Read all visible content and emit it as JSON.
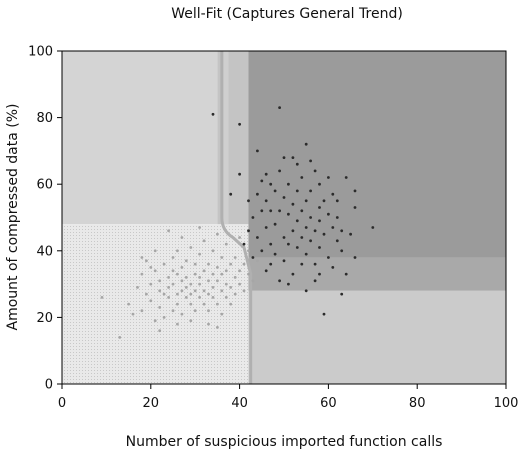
{
  "chart_data": {
    "type": "scatter",
    "title": "Well-Fit (Captures General Trend)",
    "xlabel": "Number of suspicious imported function calls",
    "ylabel": "Amount of compressed data (%)",
    "xlim": [
      0,
      100
    ],
    "ylim": [
      0,
      100
    ],
    "xticks": [
      "0",
      "20",
      "40",
      "60",
      "80",
      "100"
    ],
    "yticks": [
      "0",
      "20",
      "40",
      "60",
      "80",
      "100"
    ],
    "grid": false,
    "legend": "none",
    "colors": {
      "benign_points": "#a6a6a6",
      "malware_points": "#2b2b2b",
      "region_light": "#d4d4d4",
      "region_lighter": "#dedede",
      "region_dotted": "#e6e6e6",
      "region_dark": "#9b9b9b",
      "region_mid": "#a9a9a9",
      "region_midlight": "#cbcbcb",
      "boundary_band": "#c4c4c4",
      "boundary_line": "#b0b0b0"
    },
    "decision_regions": [
      {
        "x": [
          0,
          35
        ],
        "y": [
          48,
          100
        ],
        "shade": "region_light"
      },
      {
        "x": [
          0,
          42
        ],
        "y": [
          0,
          48
        ],
        "shade": "region_dotted"
      },
      {
        "x": [
          35,
          42
        ],
        "y": [
          48,
          100
        ],
        "shade": "boundary_band"
      },
      {
        "x": [
          42,
          100
        ],
        "y": [
          0,
          28
        ],
        "shade": "region_midlight"
      },
      {
        "x": [
          42,
          100
        ],
        "y": [
          28,
          38
        ],
        "shade": "region_mid"
      },
      {
        "x": [
          42,
          100
        ],
        "y": [
          38,
          100
        ],
        "shade": "region_dark"
      }
    ],
    "series": [
      {
        "color": "benign_points",
        "points": [
          [
            9,
            26
          ],
          [
            13,
            14
          ],
          [
            15,
            24
          ],
          [
            16,
            21
          ],
          [
            17,
            29
          ],
          [
            18,
            33
          ],
          [
            18,
            22
          ],
          [
            19,
            27
          ],
          [
            19,
            37
          ],
          [
            20,
            30
          ],
          [
            20,
            25
          ],
          [
            21,
            19
          ],
          [
            21,
            34
          ],
          [
            22,
            28
          ],
          [
            22,
            31
          ],
          [
            22,
            23
          ],
          [
            23,
            27
          ],
          [
            23,
            36
          ],
          [
            23,
            20
          ],
          [
            24,
            32
          ],
          [
            24,
            26
          ],
          [
            24,
            29
          ],
          [
            25,
            22
          ],
          [
            25,
            34
          ],
          [
            25,
            38
          ],
          [
            25,
            30
          ],
          [
            26,
            27
          ],
          [
            26,
            24
          ],
          [
            26,
            33
          ],
          [
            26,
            18
          ],
          [
            27,
            31
          ],
          [
            27,
            28
          ],
          [
            27,
            35
          ],
          [
            27,
            21
          ],
          [
            28,
            29
          ],
          [
            28,
            26
          ],
          [
            28,
            37
          ],
          [
            28,
            32
          ],
          [
            29,
            24
          ],
          [
            29,
            30
          ],
          [
            29,
            41
          ],
          [
            29,
            27
          ],
          [
            30,
            33
          ],
          [
            30,
            28
          ],
          [
            30,
            22
          ],
          [
            30,
            36
          ],
          [
            31,
            30
          ],
          [
            31,
            26
          ],
          [
            31,
            39
          ],
          [
            31,
            32
          ],
          [
            32,
            28
          ],
          [
            32,
            34
          ],
          [
            32,
            24
          ],
          [
            32,
            43
          ],
          [
            33,
            31
          ],
          [
            33,
            27
          ],
          [
            33,
            36
          ],
          [
            33,
            22
          ],
          [
            34,
            29
          ],
          [
            34,
            33
          ],
          [
            34,
            40
          ],
          [
            34,
            26
          ],
          [
            35,
            31
          ],
          [
            35,
            35
          ],
          [
            35,
            24
          ],
          [
            35,
            45
          ],
          [
            36,
            28
          ],
          [
            36,
            33
          ],
          [
            36,
            38
          ],
          [
            36,
            21
          ],
          [
            37,
            30
          ],
          [
            37,
            26
          ],
          [
            37,
            42
          ],
          [
            37,
            34
          ],
          [
            38,
            29
          ],
          [
            38,
            36
          ],
          [
            38,
            24
          ],
          [
            39,
            32
          ],
          [
            39,
            38
          ],
          [
            39,
            27
          ],
          [
            40,
            34
          ],
          [
            40,
            30
          ],
          [
            40,
            44
          ],
          [
            41,
            36
          ],
          [
            41,
            28
          ],
          [
            42,
            33
          ],
          [
            42,
            40
          ],
          [
            43,
            31
          ],
          [
            44,
            37
          ],
          [
            24,
            46
          ],
          [
            21,
            40
          ],
          [
            18,
            38
          ],
          [
            27,
            44
          ],
          [
            31,
            47
          ],
          [
            22,
            16
          ],
          [
            33,
            18
          ],
          [
            20,
            35
          ],
          [
            26,
            40
          ],
          [
            29,
            19
          ],
          [
            35,
            17
          ]
        ]
      },
      {
        "color": "malware_points",
        "points": [
          [
            34,
            81
          ],
          [
            40,
            78
          ],
          [
            40,
            63
          ],
          [
            38,
            57
          ],
          [
            44,
            57
          ],
          [
            45,
            61
          ],
          [
            44,
            70
          ],
          [
            49,
            83
          ],
          [
            52,
            68
          ],
          [
            55,
            72
          ],
          [
            57,
            64
          ],
          [
            58,
            53
          ],
          [
            64,
            62
          ],
          [
            66,
            58
          ],
          [
            66,
            53
          ],
          [
            70,
            47
          ],
          [
            66,
            38
          ],
          [
            64,
            33
          ],
          [
            63,
            27
          ],
          [
            59,
            21
          ],
          [
            55,
            28
          ],
          [
            52,
            33
          ],
          [
            49,
            31
          ],
          [
            47,
            42
          ],
          [
            47,
            52
          ],
          [
            48,
            48
          ],
          [
            50,
            56
          ],
          [
            50,
            44
          ],
          [
            51,
            51
          ],
          [
            51,
            60
          ],
          [
            52,
            46
          ],
          [
            52,
            54
          ],
          [
            53,
            41
          ],
          [
            53,
            49
          ],
          [
            53,
            58
          ],
          [
            54,
            44
          ],
          [
            54,
            52
          ],
          [
            54,
            62
          ],
          [
            55,
            47
          ],
          [
            55,
            55
          ],
          [
            55,
            39
          ],
          [
            56,
            50
          ],
          [
            56,
            43
          ],
          [
            56,
            58
          ],
          [
            57,
            46
          ],
          [
            57,
            36
          ],
          [
            58,
            49
          ],
          [
            58,
            41
          ],
          [
            59,
            55
          ],
          [
            59,
            45
          ],
          [
            60,
            51
          ],
          [
            60,
            38
          ],
          [
            61,
            47
          ],
          [
            61,
            57
          ],
          [
            62,
            43
          ],
          [
            62,
            50
          ],
          [
            63,
            46
          ],
          [
            63,
            40
          ],
          [
            45,
            40
          ],
          [
            46,
            47
          ],
          [
            46,
            55
          ],
          [
            47,
            36
          ],
          [
            48,
            58
          ],
          [
            48,
            39
          ],
          [
            49,
            52
          ],
          [
            49,
            64
          ],
          [
            50,
            37
          ],
          [
            51,
            42
          ],
          [
            44,
            44
          ],
          [
            43,
            50
          ],
          [
            42,
            46
          ],
          [
            45,
            52
          ],
          [
            46,
            63
          ],
          [
            50,
            68
          ],
          [
            53,
            66
          ],
          [
            56,
            67
          ],
          [
            58,
            60
          ],
          [
            60,
            62
          ],
          [
            61,
            35
          ],
          [
            57,
            31
          ],
          [
            51,
            30
          ],
          [
            46,
            34
          ],
          [
            43,
            38
          ],
          [
            42,
            55
          ],
          [
            41,
            42
          ],
          [
            47,
            60
          ],
          [
            54,
            36
          ],
          [
            58,
            33
          ],
          [
            62,
            55
          ],
          [
            65,
            45
          ]
        ]
      }
    ]
  }
}
